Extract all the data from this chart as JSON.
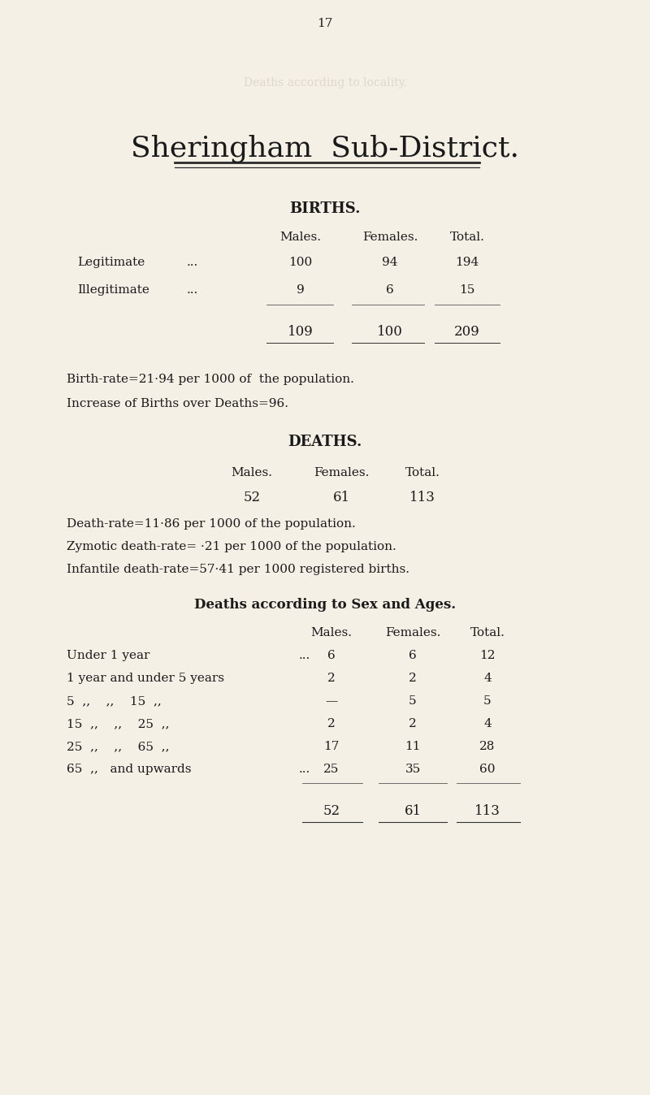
{
  "bg_color": "#f5f0e6",
  "text_color": "#1a1a1a",
  "page_number": "17",
  "bleed_text": "Deaths according to locality.",
  "title": "Sheringham  Sub-District.",
  "section1_header": "BIRTHS.",
  "births_col_headers": [
    "Males.",
    "Females.",
    "Total."
  ],
  "births_rows": [
    [
      "Legitimate",
      "...",
      "100",
      "94",
      "194"
    ],
    [
      "Illegitimate",
      "...",
      "9",
      "6",
      "15"
    ]
  ],
  "births_totals": [
    "109",
    "100",
    "209"
  ],
  "birth_rate_line1": "Birth-rate=21·94 per 1000 of  the population.",
  "birth_rate_line2": "Increase of Births over Deaths=96.",
  "section2_header": "DEATHS.",
  "deaths_col_headers": [
    "Males.",
    "Females.",
    "Total."
  ],
  "deaths_summary": [
    "52",
    "61",
    "113"
  ],
  "death_rate_line1": "Death-rate=11·86 per 1000 of the population.",
  "death_rate_line2": "Zymotic death-rate= ·21 per 1000 of the population.",
  "death_rate_line3": "Infantile death-rate=57·41 per 1000 registered births.",
  "section3_header": "Deaths according to Sex and Ages.",
  "ages_col_headers": [
    "Males.",
    "Females.",
    "Total."
  ],
  "ages_rows": [
    [
      "Under 1 year",
      "...",
      "6",
      "6",
      "12"
    ],
    [
      "1 year and under 5 years",
      "",
      "2",
      "2",
      "4"
    ],
    [
      "5  ,,    ,,    15  ,,",
      "",
      "—",
      "5",
      "5"
    ],
    [
      "15  ,,    ,,    25  ,,",
      "",
      "2",
      "2",
      "4"
    ],
    [
      "25  ,,    ,,    65  ,,",
      "",
      "17",
      "11",
      "28"
    ],
    [
      "65  ,,   and upwards",
      "...",
      "25",
      "35",
      "60"
    ]
  ],
  "ages_totals": [
    "52",
    "61",
    "113"
  ]
}
